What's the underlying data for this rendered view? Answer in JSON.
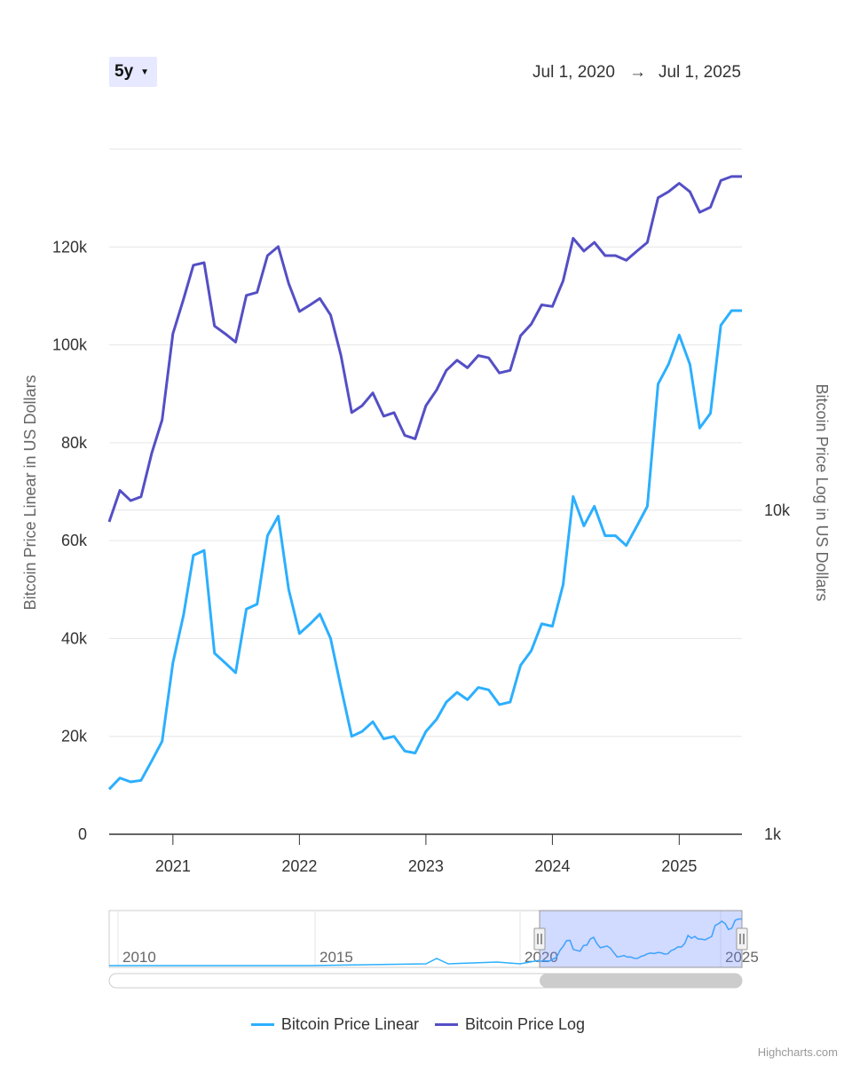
{
  "range_selector": {
    "label": "5y"
  },
  "date_range": {
    "from": "Jul 1, 2020",
    "arrow": "→",
    "to": "Jul 1, 2025"
  },
  "navigator": {
    "year_labels": [
      "2010",
      "2015",
      "2020",
      "2025"
    ]
  },
  "credits": "Highcharts.com",
  "colors": {
    "linear": "#2caffe",
    "log": "#544fc5",
    "grid": "#e6e6e6",
    "navigator_mask": "rgba(102,133,255,0.3)"
  },
  "chart_data": {
    "type": "line",
    "x_range": [
      "2020-07-01",
      "2025-07-01"
    ],
    "xticks": [
      "2021",
      "2022",
      "2023",
      "2024",
      "2025"
    ],
    "yleft": {
      "label": "Bitcoin Price Linear in US Dollars",
      "ticks": [
        "0",
        "20k",
        "40k",
        "60k",
        "80k",
        "100k",
        "120k"
      ],
      "range": [
        0,
        140000
      ]
    },
    "yright": {
      "label": "Bitcoin Price Log in US Dollars",
      "scale": "log",
      "ticks": [
        "1k",
        "10k"
      ],
      "range": [
        1000,
        130000
      ]
    },
    "series": [
      {
        "name": "Bitcoin Price Linear",
        "axis": "left",
        "x": [
          "2020-07-01",
          "2020-08-01",
          "2020-09-01",
          "2020-10-01",
          "2020-11-01",
          "2020-12-01",
          "2021-01-01",
          "2021-02-01",
          "2021-03-01",
          "2021-04-01",
          "2021-05-01",
          "2021-06-01",
          "2021-07-01",
          "2021-08-01",
          "2021-09-01",
          "2021-10-01",
          "2021-11-01",
          "2021-12-01",
          "2022-01-01",
          "2022-02-01",
          "2022-03-01",
          "2022-04-01",
          "2022-05-01",
          "2022-06-01",
          "2022-07-01",
          "2022-08-01",
          "2022-09-01",
          "2022-10-01",
          "2022-11-01",
          "2022-12-01",
          "2023-01-01",
          "2023-02-01",
          "2023-03-01",
          "2023-04-01",
          "2023-05-01",
          "2023-06-01",
          "2023-07-01",
          "2023-08-01",
          "2023-09-01",
          "2023-10-01",
          "2023-11-01",
          "2023-12-01",
          "2024-01-01",
          "2024-02-01",
          "2024-03-01",
          "2024-04-01",
          "2024-05-01",
          "2024-06-01",
          "2024-07-01",
          "2024-08-01",
          "2024-09-01",
          "2024-10-01",
          "2024-11-01",
          "2024-12-01",
          "2025-01-01",
          "2025-02-01",
          "2025-03-01",
          "2025-04-01",
          "2025-05-01",
          "2025-06-01",
          "2025-07-01"
        ],
        "values": [
          9200,
          11500,
          10700,
          11000,
          15000,
          19000,
          35000,
          45000,
          57000,
          58000,
          37000,
          35000,
          33000,
          46000,
          47000,
          61000,
          65000,
          50000,
          41000,
          43000,
          45000,
          40000,
          30000,
          20000,
          21000,
          23000,
          19500,
          20000,
          17000,
          16600,
          21000,
          23500,
          27000,
          29000,
          27500,
          30000,
          29500,
          26500,
          27000,
          34500,
          37500,
          43000,
          42500,
          51000,
          69000,
          63000,
          67000,
          61000,
          61000,
          59000,
          63000,
          67000,
          92000,
          96000,
          102000,
          96000,
          83000,
          86000,
          104000,
          107000,
          107000
        ]
      },
      {
        "name": "Bitcoin Price Log",
        "axis": "right",
        "x": [
          "2020-07-01",
          "2020-08-01",
          "2020-09-01",
          "2020-10-01",
          "2020-11-01",
          "2020-12-01",
          "2021-01-01",
          "2021-02-01",
          "2021-03-01",
          "2021-04-01",
          "2021-05-01",
          "2021-06-01",
          "2021-07-01",
          "2021-08-01",
          "2021-09-01",
          "2021-10-01",
          "2021-11-01",
          "2021-12-01",
          "2022-01-01",
          "2022-02-01",
          "2022-03-01",
          "2022-04-01",
          "2022-05-01",
          "2022-06-01",
          "2022-07-01",
          "2022-08-01",
          "2022-09-01",
          "2022-10-01",
          "2022-11-01",
          "2022-12-01",
          "2023-01-01",
          "2023-02-01",
          "2023-03-01",
          "2023-04-01",
          "2023-05-01",
          "2023-06-01",
          "2023-07-01",
          "2023-08-01",
          "2023-09-01",
          "2023-10-01",
          "2023-11-01",
          "2023-12-01",
          "2024-01-01",
          "2024-02-01",
          "2024-03-01",
          "2024-04-01",
          "2024-05-01",
          "2024-06-01",
          "2024-07-01",
          "2024-08-01",
          "2024-09-01",
          "2024-10-01",
          "2024-11-01",
          "2024-12-01",
          "2025-01-01",
          "2025-02-01",
          "2025-03-01",
          "2025-04-01",
          "2025-05-01",
          "2025-06-01",
          "2025-07-01"
        ],
        "values": [
          9200,
          11500,
          10700,
          11000,
          15000,
          19000,
          35000,
          45000,
          57000,
          58000,
          37000,
          35000,
          33000,
          46000,
          47000,
          61000,
          65000,
          50000,
          41000,
          43000,
          45000,
          40000,
          30000,
          20000,
          21000,
          23000,
          19500,
          20000,
          17000,
          16600,
          21000,
          23500,
          27000,
          29000,
          27500,
          30000,
          29500,
          26500,
          27000,
          34500,
          37500,
          43000,
          42500,
          51000,
          69000,
          63000,
          67000,
          61000,
          61000,
          59000,
          63000,
          67000,
          92000,
          96000,
          102000,
          96000,
          83000,
          86000,
          104000,
          107000,
          107000
        ]
      }
    ],
    "legend": [
      "Bitcoin Price Linear",
      "Bitcoin Price Log"
    ],
    "legend_position": "bottom-center",
    "grid": true
  }
}
